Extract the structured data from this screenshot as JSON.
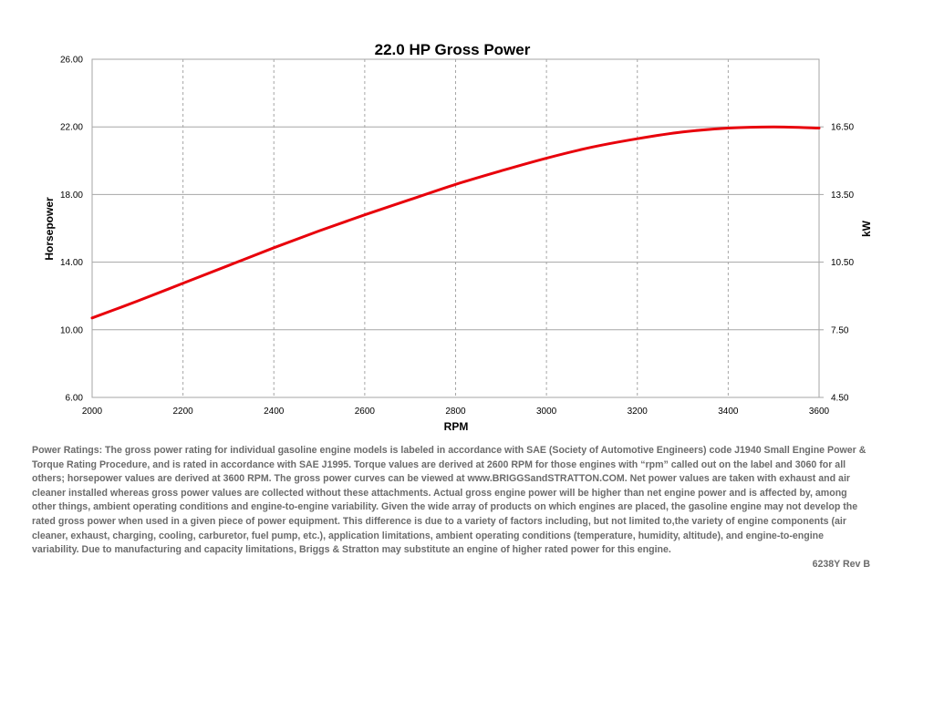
{
  "chart_data": {
    "type": "line",
    "title": "22.0 HP Gross Power",
    "xlabel": "RPM",
    "ylabel": "Horsepower",
    "y2label": "kW",
    "xlim": [
      2000,
      3600
    ],
    "ylim": [
      6.0,
      26.0
    ],
    "y2lim": [
      4.5,
      19.5
    ],
    "x_ticks": [
      "2000",
      "2200",
      "2400",
      "2600",
      "2800",
      "3000",
      "3200",
      "3400",
      "3600"
    ],
    "y_ticks": [
      "6.00",
      "10.00",
      "14.00",
      "18.00",
      "22.00",
      "26.00"
    ],
    "y_ticks_values": [
      6,
      10,
      14,
      18,
      22,
      26
    ],
    "y2_ticks": [
      "4.50",
      "7.50",
      "10.50",
      "13.50",
      "16.50"
    ],
    "y2_ticks_values": [
      4.5,
      7.5,
      10.5,
      13.5,
      16.5
    ],
    "grid": true,
    "series": [
      {
        "color": "#e8000b",
        "x": [
          2000,
          2100,
          2200,
          2300,
          2400,
          2500,
          2600,
          2700,
          2800,
          2900,
          3000,
          3100,
          3200,
          3300,
          3400,
          3500,
          3600
        ],
        "y": [
          10.7,
          11.7,
          12.75,
          13.8,
          14.85,
          15.85,
          16.8,
          17.7,
          18.6,
          19.4,
          20.15,
          20.8,
          21.3,
          21.7,
          21.93,
          22.0,
          21.93
        ]
      }
    ]
  },
  "footnote": {
    "text": "Power Ratings: The gross power rating for individual gasoline engine models is labeled in accordance with SAE (Society of Automotive Engineers) code J1940 Small Engine Power & Torque Rating Procedure, and is rated in accordance with SAE J1995. Torque values are derived at 2600 RPM for those engines with “rpm” called out on the label and 3060 for all others; horsepower values are derived at 3600 RPM. The gross power curves can be viewed at www.BRIGGSandSTRATTON.COM. Net power values are taken with exhaust and air cleaner installed whereas gross power values are collected without these attachments. Actual gross engine power will be higher than net engine power and is affected by, among other things, ambient operating conditions and engine-to-engine variability. Given the wide array of products on which engines are placed, the gasoline engine may not develop the rated gross power when used in a given piece of power equipment. This difference is due to a variety of factors including, but not limited to,the variety of engine components (air cleaner, exhaust, charging, cooling, carburetor, fuel pump, etc.), application limitations, ambient operating conditions (temperature, humidity, altitude), and engine-to-engine variability. Due to manufacturing and capacity limitations, Briggs & Stratton may substitute an engine of higher rated power for this engine.",
    "code": "6238Y Rev B"
  },
  "colors": {
    "line": "#e8000b",
    "grid": "#a6a6a6",
    "footnote_text": "#6b6b6b"
  }
}
